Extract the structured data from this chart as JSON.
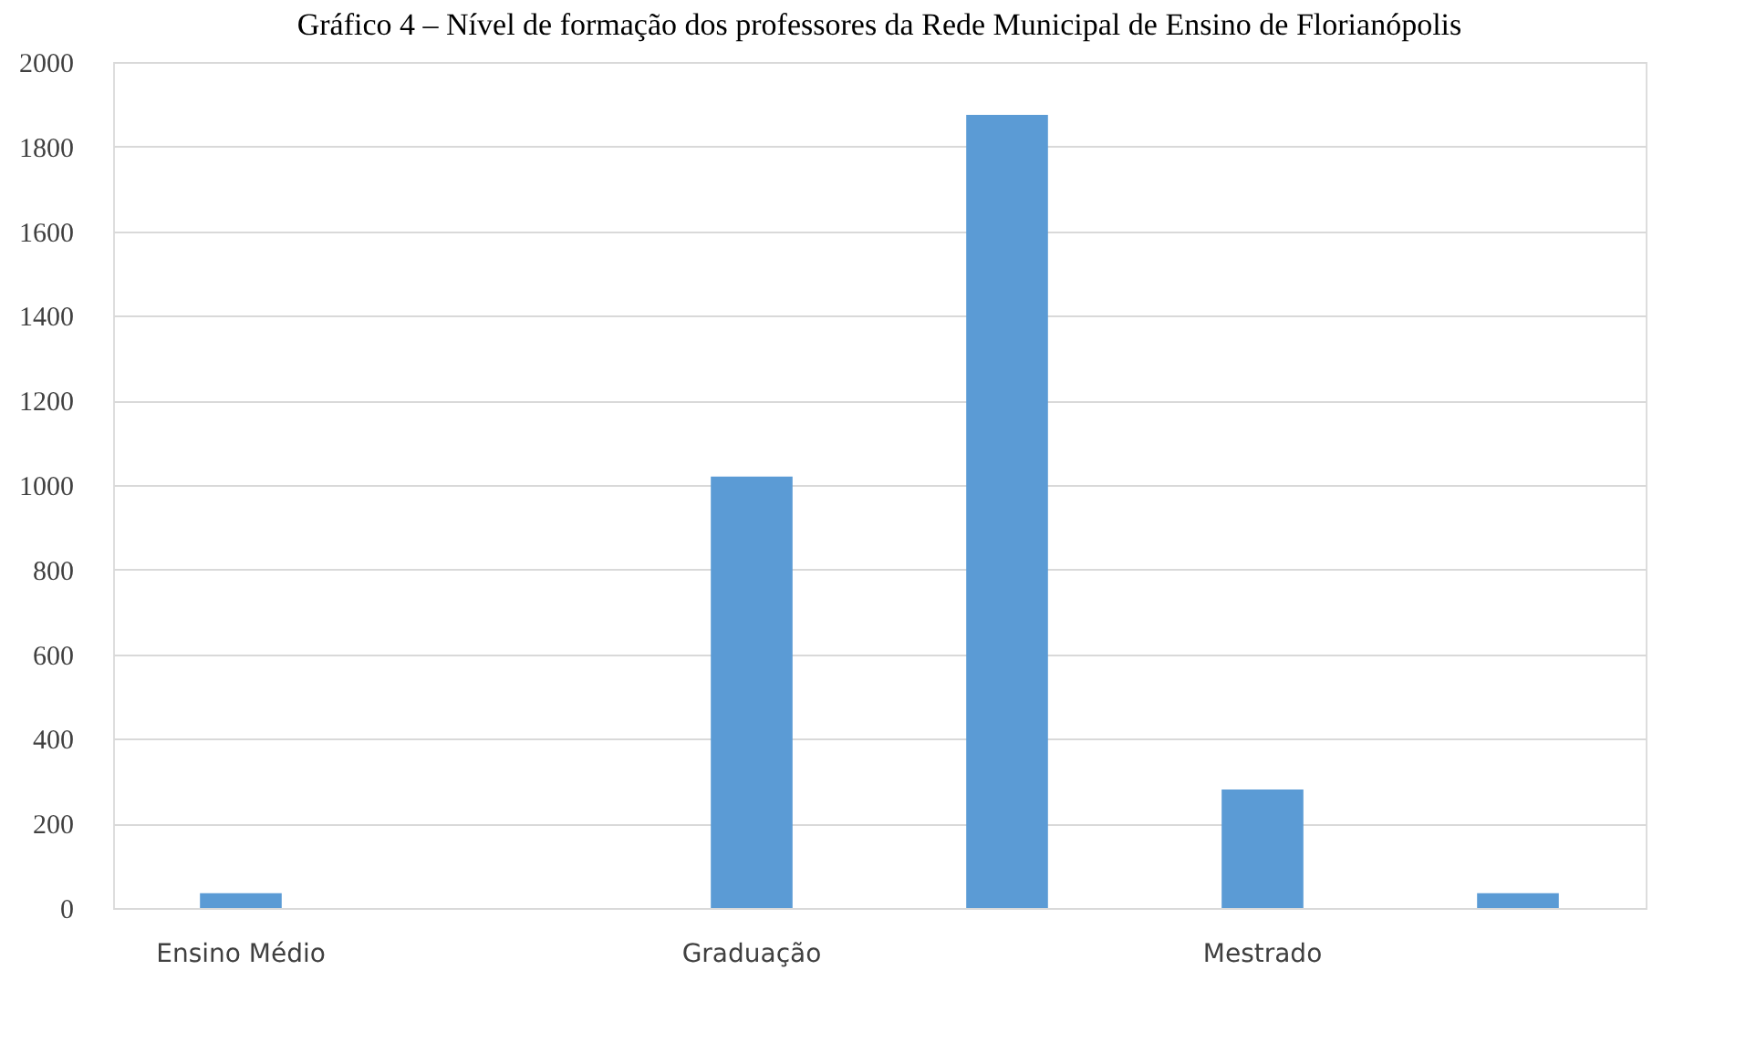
{
  "chart_data": {
    "type": "bar",
    "title": "Gráfico 4 – Nível de formação dos professores da Rede Municipal de Ensino de Florianópolis",
    "categories": [
      "Ensino Médio",
      null,
      "Graduação",
      null,
      "Mestrado",
      null
    ],
    "values": [
      35,
      null,
      1020,
      1875,
      280,
      35
    ],
    "color": "#5b9bd5",
    "ylim": [
      0,
      2000
    ],
    "yticks": [
      0,
      200,
      400,
      600,
      800,
      1000,
      1200,
      1400,
      1600,
      1800,
      2000
    ],
    "grid": "y"
  }
}
